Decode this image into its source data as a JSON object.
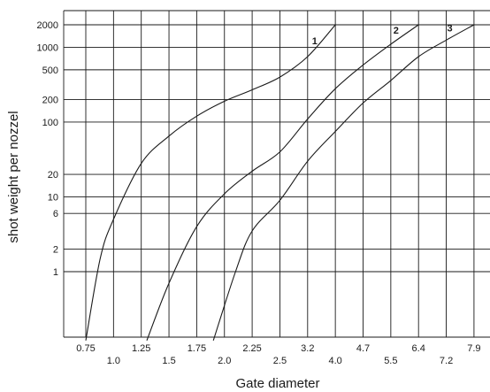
{
  "chart_data": {
    "type": "line",
    "title": "",
    "xlabel": "Gate diameter",
    "ylabel": "shot weight per nozzel",
    "yscale": "log",
    "ylim": [
      0.12,
      3500
    ],
    "xlim": [
      0.625,
      8.0
    ],
    "grid": true,
    "x_ticks": [
      {
        "label": "0.75",
        "row": "upper"
      },
      {
        "label": "1.0",
        "row": "lower"
      },
      {
        "label": "1.25",
        "row": "upper"
      },
      {
        "label": "1.5",
        "row": "lower"
      },
      {
        "label": "1.75",
        "row": "upper"
      },
      {
        "label": "2.0",
        "row": "lower"
      },
      {
        "label": "2.25",
        "row": "upper"
      },
      {
        "label": "2.5",
        "row": "lower"
      },
      {
        "label": "3.2",
        "row": "upper"
      },
      {
        "label": "4.0",
        "row": "lower"
      },
      {
        "label": "4.7",
        "row": "upper"
      },
      {
        "label": "5.5",
        "row": "lower"
      },
      {
        "label": "6.4",
        "row": "upper"
      },
      {
        "label": "7.2",
        "row": "lower"
      },
      {
        "label": "7.9",
        "row": "upper"
      }
    ],
    "y_ticks": [
      "1",
      "2",
      "6",
      "10",
      "20",
      "100",
      "200",
      "500",
      "1000",
      "2000"
    ],
    "series": [
      {
        "name": "1",
        "points": [
          {
            "x": 0.75,
            "y": 0.12
          },
          {
            "x": 0.88,
            "y": 1.5
          },
          {
            "x": 1.0,
            "y": 5
          },
          {
            "x": 1.25,
            "y": 28
          },
          {
            "x": 1.5,
            "y": 65
          },
          {
            "x": 1.75,
            "y": 120
          },
          {
            "x": 2.0,
            "y": 190
          },
          {
            "x": 2.25,
            "y": 270
          },
          {
            "x": 2.5,
            "y": 400
          },
          {
            "x": 3.2,
            "y": 750
          },
          {
            "x": 4.0,
            "y": 2000
          }
        ]
      },
      {
        "name": "2",
        "points": [
          {
            "x": 1.3,
            "y": 0.12
          },
          {
            "x": 1.5,
            "y": 0.7
          },
          {
            "x": 1.75,
            "y": 4
          },
          {
            "x": 2.0,
            "y": 11
          },
          {
            "x": 2.25,
            "y": 22
          },
          {
            "x": 2.5,
            "y": 40
          },
          {
            "x": 3.2,
            "y": 110
          },
          {
            "x": 4.0,
            "y": 280
          },
          {
            "x": 4.7,
            "y": 580
          },
          {
            "x": 5.5,
            "y": 1100
          },
          {
            "x": 6.4,
            "y": 2000
          }
        ]
      },
      {
        "name": "3",
        "points": [
          {
            "x": 1.9,
            "y": 0.12
          },
          {
            "x": 2.1,
            "y": 1
          },
          {
            "x": 2.25,
            "y": 3.5
          },
          {
            "x": 2.5,
            "y": 9
          },
          {
            "x": 3.2,
            "y": 30
          },
          {
            "x": 4.0,
            "y": 75
          },
          {
            "x": 4.7,
            "y": 180
          },
          {
            "x": 5.5,
            "y": 360
          },
          {
            "x": 6.4,
            "y": 750
          },
          {
            "x": 7.2,
            "y": 1250
          },
          {
            "x": 7.9,
            "y": 2000
          }
        ]
      }
    ]
  }
}
